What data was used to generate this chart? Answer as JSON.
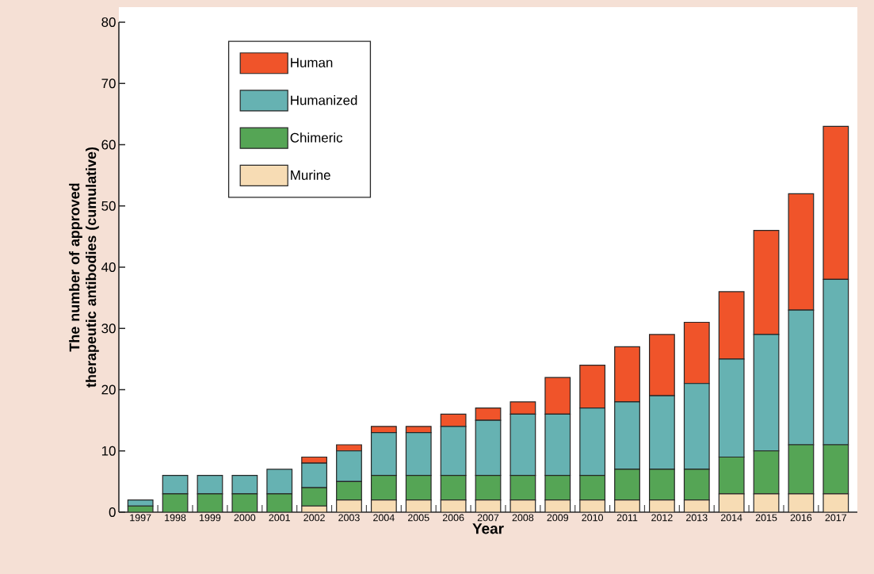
{
  "chart_data": {
    "type": "bar",
    "stacked": true,
    "xlabel": "Year",
    "ylabel": "The number of approved therapeutic antibodies (cumulative)",
    "categories": [
      "1997",
      "1998",
      "1999",
      "2000",
      "2001",
      "2002",
      "2003",
      "2004",
      "2005",
      "2006",
      "2007",
      "2008",
      "2009",
      "2010",
      "2011",
      "2012",
      "2013",
      "2014",
      "2015",
      "2016",
      "2017"
    ],
    "series": [
      {
        "name": "Murine",
        "color": "#f7dcb4",
        "values": [
          0,
          0,
          0,
          0,
          0,
          1,
          2,
          2,
          2,
          2,
          2,
          2,
          2,
          2,
          2,
          2,
          2,
          3,
          3,
          3,
          3
        ]
      },
      {
        "name": "Chimeric",
        "color": "#55a555",
        "values": [
          1,
          3,
          3,
          3,
          3,
          3,
          3,
          4,
          4,
          4,
          4,
          4,
          4,
          4,
          5,
          5,
          5,
          6,
          7,
          8,
          8
        ]
      },
      {
        "name": "Humanized",
        "color": "#66b2b2",
        "values": [
          1,
          3,
          3,
          3,
          4,
          4,
          5,
          7,
          7,
          8,
          9,
          10,
          10,
          11,
          11,
          12,
          14,
          16,
          19,
          22,
          27
        ]
      },
      {
        "name": "Human",
        "color": "#f0542a",
        "values": [
          0,
          0,
          0,
          0,
          0,
          1,
          1,
          1,
          1,
          2,
          2,
          2,
          6,
          7,
          9,
          10,
          10,
          11,
          17,
          19,
          25
        ]
      }
    ],
    "ylim": [
      0,
      80
    ],
    "yticks": [
      0,
      10,
      20,
      30,
      40,
      50,
      60,
      70,
      80
    ],
    "legend": "top left"
  }
}
